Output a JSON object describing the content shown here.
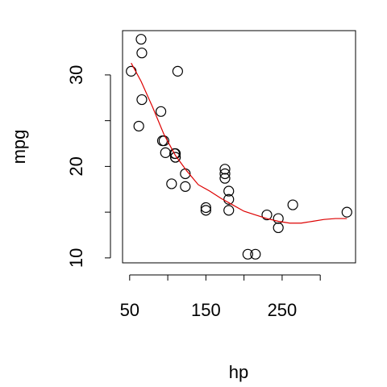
{
  "chart_data": {
    "type": "scatter",
    "xlabel": "hp",
    "ylabel": "mpg",
    "x": [
      110,
      110,
      93,
      110,
      175,
      105,
      245,
      62,
      95,
      123,
      123,
      180,
      180,
      180,
      205,
      215,
      230,
      66,
      52,
      65,
      97,
      150,
      150,
      245,
      175,
      66,
      91,
      113,
      264,
      175,
      335,
      109
    ],
    "values": [
      21,
      21,
      22.8,
      21.4,
      18.7,
      18.1,
      14.3,
      24.4,
      22.8,
      19.2,
      17.8,
      16.4,
      17.3,
      15.2,
      10.4,
      10.4,
      14.7,
      32.4,
      30.4,
      33.9,
      21.5,
      15.5,
      15.2,
      13.3,
      19.2,
      27.3,
      26,
      30.4,
      15.8,
      19.7,
      15,
      21.4
    ],
    "color": "#000000",
    "smooth": {
      "color": "#dd0000",
      "x": [
        52,
        65,
        80,
        95,
        110,
        125,
        140,
        155,
        170,
        185,
        200,
        215,
        230,
        245,
        260,
        275,
        290,
        305,
        320,
        335
      ],
      "y": [
        31.3,
        29.3,
        26.5,
        23.5,
        21.2,
        19.5,
        18,
        17.3,
        16.5,
        15.8,
        15.1,
        14.7,
        14.3,
        14,
        13.8,
        13.8,
        14,
        14.2,
        14.3,
        14.3
      ]
    },
    "xlim": [
      40.68,
      346.32
    ],
    "ylim": [
      9.46,
      34.84
    ],
    "xticks": [
      50,
      150,
      250
    ],
    "xminor_ticks": [
      100,
      200,
      300
    ],
    "yticks": [
      10,
      20,
      30
    ],
    "yminor_ticks": [
      15,
      25
    ]
  }
}
